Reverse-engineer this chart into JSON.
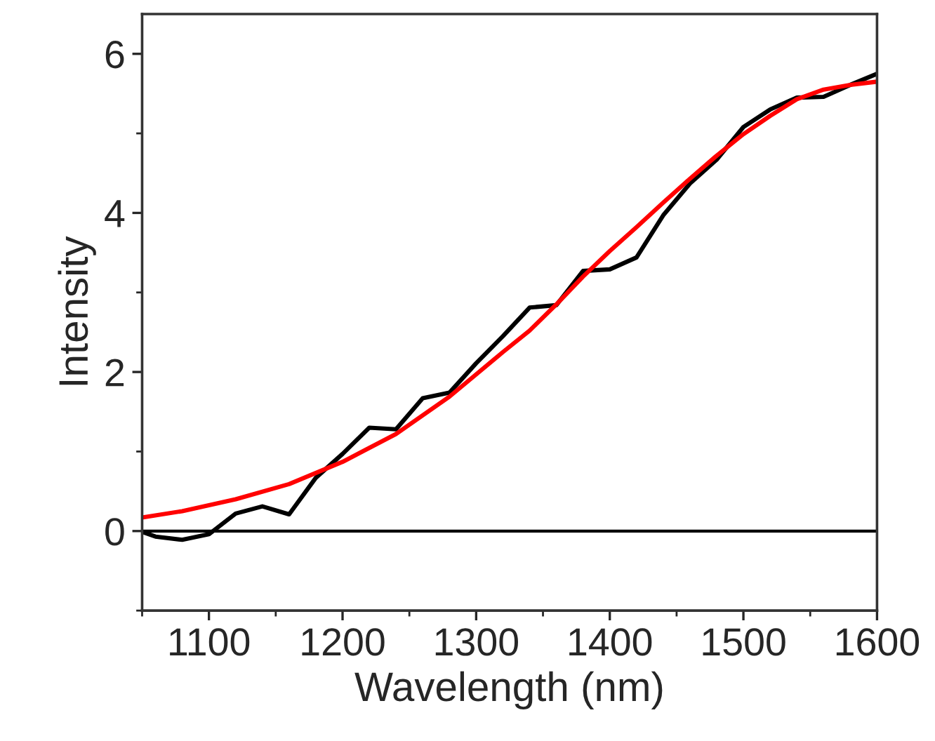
{
  "chart_data": {
    "type": "line",
    "xlabel": "Wavelength (nm)",
    "ylabel": "Intensity",
    "xlim": [
      1050,
      1600
    ],
    "xticks": [
      1100,
      1200,
      1300,
      1400,
      1500,
      1600
    ],
    "ylim": [
      -1,
      6.5
    ],
    "yticks": [
      0,
      2,
      4,
      6
    ],
    "grid": false,
    "legend": false,
    "marker": "none",
    "line_style": "solid",
    "ref_lines": [
      {
        "axis": "y",
        "value": 0,
        "color": "#000000"
      }
    ],
    "series": [
      {
        "color": "#000000",
        "x": [
          1050,
          1060,
          1080,
          1100,
          1120,
          1140,
          1160,
          1180,
          1200,
          1220,
          1240,
          1260,
          1280,
          1300,
          1320,
          1340,
          1360,
          1380,
          1400,
          1420,
          1440,
          1460,
          1480,
          1500,
          1520,
          1540,
          1560,
          1580,
          1600
        ],
        "values": [
          -0.01,
          -0.07,
          -0.11,
          -0.04,
          0.22,
          0.31,
          0.21,
          0.67,
          0.97,
          1.3,
          1.28,
          1.67,
          1.74,
          2.11,
          2.45,
          2.81,
          2.84,
          3.27,
          3.29,
          3.44,
          3.97,
          4.37,
          4.67,
          5.08,
          5.3,
          5.45,
          5.46,
          5.61,
          5.75
        ]
      },
      {
        "color": "#ff0000",
        "x": [
          1050,
          1080,
          1120,
          1160,
          1200,
          1240,
          1280,
          1320,
          1340,
          1360,
          1380,
          1400,
          1420,
          1440,
          1460,
          1480,
          1500,
          1520,
          1540,
          1560,
          1580,
          1600
        ],
        "values": [
          0.17,
          0.25,
          0.4,
          0.59,
          0.87,
          1.22,
          1.69,
          2.25,
          2.52,
          2.85,
          3.2,
          3.52,
          3.82,
          4.13,
          4.43,
          4.72,
          4.99,
          5.22,
          5.43,
          5.55,
          5.61,
          5.65
        ]
      }
    ]
  }
}
